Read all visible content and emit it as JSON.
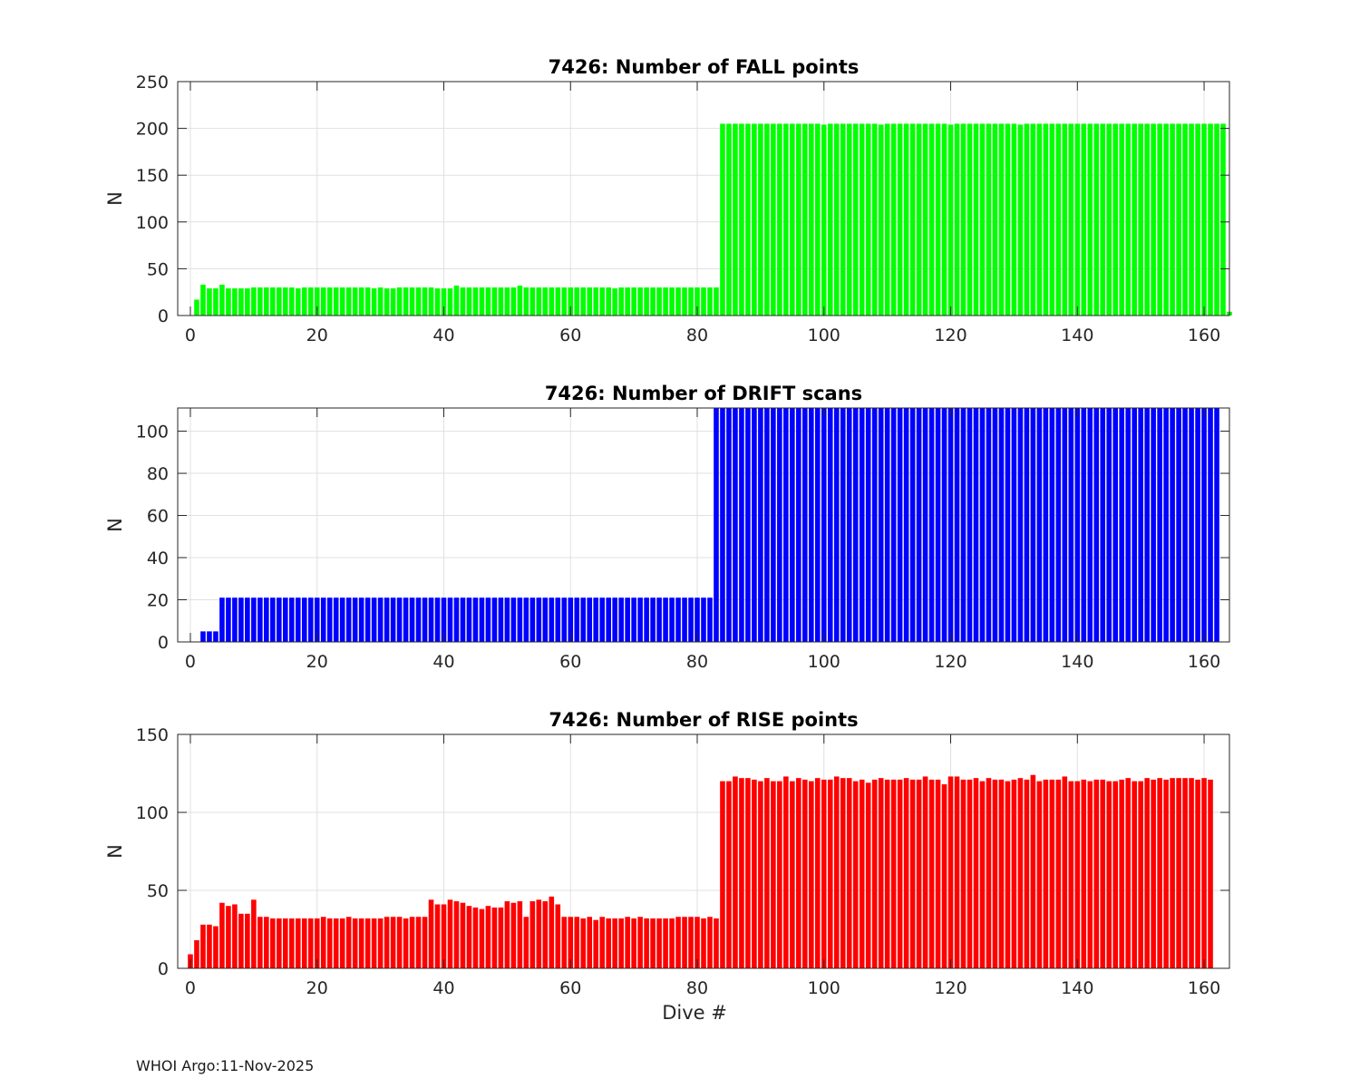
{
  "chart_data": [
    {
      "type": "bar",
      "title": "7426: Number of FALL points",
      "ylabel": "N",
      "xlabel": "",
      "xlim": [
        -2,
        164
      ],
      "ylim": [
        0,
        250
      ],
      "xticks": [
        0,
        20,
        40,
        60,
        80,
        100,
        120,
        140,
        160
      ],
      "yticks": [
        0,
        50,
        100,
        150,
        200,
        250
      ],
      "grid": true,
      "color": "#00ff00",
      "x_start": 1,
      "values": [
        17,
        33,
        29,
        29,
        33,
        29,
        29,
        29,
        29,
        30,
        30,
        30,
        30,
        30,
        30,
        30,
        29,
        30,
        30,
        30,
        30,
        30,
        30,
        30,
        30,
        30,
        30,
        30,
        29,
        30,
        29,
        29,
        30,
        30,
        30,
        30,
        30,
        30,
        29,
        29,
        29,
        32,
        30,
        30,
        30,
        30,
        30,
        30,
        30,
        30,
        30,
        32,
        30,
        30,
        30,
        30,
        30,
        30,
        30,
        30,
        30,
        30,
        30,
        30,
        30,
        30,
        29,
        30,
        30,
        30,
        30,
        30,
        30,
        30,
        30,
        30,
        30,
        30,
        30,
        30,
        30,
        30,
        30,
        205,
        205,
        205,
        205,
        205,
        205,
        205,
        205,
        205,
        205,
        205,
        205,
        205,
        205,
        205,
        205,
        204,
        205,
        205,
        205,
        205,
        205,
        205,
        205,
        205,
        204,
        205,
        205,
        205,
        205,
        205,
        205,
        205,
        205,
        205,
        205,
        204,
        205,
        205,
        205,
        205,
        205,
        205,
        205,
        205,
        205,
        205,
        204,
        205,
        205,
        205,
        205,
        205,
        205,
        205,
        205,
        205,
        205,
        205,
        205,
        205,
        205,
        205,
        205,
        205,
        205,
        205,
        205,
        205,
        205,
        205,
        205,
        205,
        205,
        205,
        205,
        205,
        205,
        205,
        205,
        4
      ]
    },
    {
      "type": "bar",
      "title": "7426: Number of DRIFT scans",
      "ylabel": "N",
      "xlabel": "",
      "xlim": [
        -2,
        164
      ],
      "ylim": [
        0,
        111
      ],
      "xticks": [
        0,
        20,
        40,
        60,
        80,
        100,
        120,
        140,
        160
      ],
      "yticks": [
        0,
        20,
        40,
        60,
        80,
        100
      ],
      "grid": true,
      "color": "#0000ff",
      "x_start": 2,
      "values": [
        5,
        5,
        5,
        21,
        21,
        21,
        21,
        21,
        21,
        21,
        21,
        21,
        21,
        21,
        21,
        21,
        21,
        21,
        21,
        21,
        21,
        21,
        21,
        21,
        21,
        21,
        21,
        21,
        21,
        21,
        21,
        21,
        21,
        21,
        21,
        21,
        21,
        21,
        21,
        21,
        21,
        21,
        21,
        21,
        21,
        21,
        21,
        21,
        21,
        21,
        21,
        21,
        21,
        21,
        21,
        21,
        21,
        21,
        21,
        21,
        21,
        21,
        21,
        21,
        21,
        21,
        21,
        21,
        21,
        21,
        21,
        21,
        21,
        21,
        21,
        21,
        21,
        21,
        21,
        21,
        21,
        111,
        111,
        111,
        111,
        111,
        111,
        111,
        111,
        111,
        111,
        111,
        111,
        111,
        111,
        111,
        111,
        111,
        111,
        111,
        111,
        111,
        111,
        111,
        111,
        111,
        111,
        111,
        111,
        111,
        111,
        111,
        111,
        111,
        111,
        111,
        111,
        111,
        111,
        111,
        111,
        111,
        111,
        111,
        111,
        111,
        111,
        111,
        111,
        111,
        111,
        111,
        111,
        111,
        111,
        111,
        111,
        111,
        111,
        111,
        111,
        111,
        111,
        111,
        111,
        111,
        111,
        111,
        111,
        111,
        111,
        111,
        111,
        111,
        111,
        111,
        111,
        111,
        111,
        111,
        111
      ]
    },
    {
      "type": "bar",
      "title": "7426: Number of RISE points",
      "ylabel": "N",
      "xlabel": "Dive #",
      "xlim": [
        -2,
        164
      ],
      "ylim": [
        0,
        150
      ],
      "xticks": [
        0,
        20,
        40,
        60,
        80,
        100,
        120,
        140,
        160
      ],
      "yticks": [
        0,
        50,
        100,
        150
      ],
      "grid": true,
      "color": "#ff0000",
      "x_start": 0,
      "values": [
        9,
        18,
        28,
        28,
        27,
        42,
        40,
        41,
        35,
        35,
        44,
        33,
        33,
        32,
        32,
        32,
        32,
        32,
        32,
        32,
        32,
        33,
        32,
        32,
        32,
        33,
        32,
        32,
        32,
        32,
        32,
        33,
        33,
        33,
        32,
        33,
        33,
        33,
        44,
        41,
        41,
        44,
        43,
        42,
        40,
        39,
        38,
        40,
        39,
        39,
        43,
        42,
        43,
        33,
        43,
        44,
        43,
        46,
        41,
        33,
        33,
        33,
        32,
        33,
        31,
        33,
        32,
        32,
        32,
        33,
        32,
        33,
        32,
        32,
        32,
        32,
        32,
        33,
        33,
        33,
        33,
        32,
        33,
        32,
        120,
        120,
        123,
        122,
        122,
        121,
        120,
        122,
        120,
        120,
        123,
        120,
        122,
        121,
        120,
        122,
        121,
        121,
        123,
        122,
        122,
        120,
        121,
        119,
        121,
        122,
        121,
        121,
        121,
        122,
        121,
        121,
        123,
        121,
        121,
        118,
        123,
        123,
        121,
        121,
        122,
        120,
        122,
        121,
        121,
        120,
        121,
        122,
        121,
        124,
        120,
        121,
        121,
        121,
        123,
        120,
        120,
        121,
        120,
        121,
        121,
        120,
        120,
        121,
        122,
        120,
        120,
        122,
        121,
        122,
        121,
        122,
        122,
        122,
        122,
        121,
        122,
        121
      ]
    }
  ],
  "footer": {
    "text": "WHOI Argo:11-Nov-2025"
  }
}
